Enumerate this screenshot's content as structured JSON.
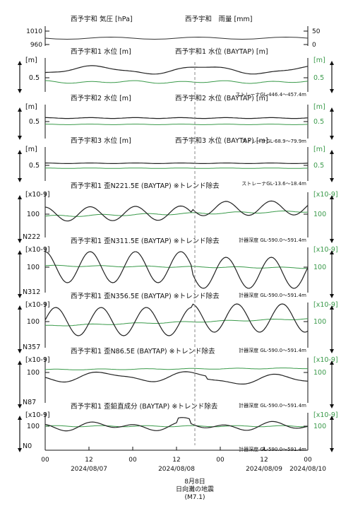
{
  "colors": {
    "black_series": "#222222",
    "green_series": "#3a9a4a",
    "axis": "#111111",
    "event_line": "#888888"
  },
  "chart_data": {
    "type": "line",
    "x_ticks": [
      "00",
      "12",
      "00",
      "12",
      "00",
      "12",
      "00"
    ],
    "date_labels": [
      "2024/08/07",
      "2024/08/08",
      "2024/08/09",
      "2024/08/10"
    ],
    "event": {
      "line1": "8月8日",
      "line2": "日向灘の地震",
      "line3": "(M7.1)",
      "x_hours": 40
    },
    "top": {
      "title_left": "西予宇和 気圧 [hPa]",
      "title_right": "西予宇和　雨量 [mm]",
      "left_ticks": [
        "1010",
        "960"
      ],
      "right_ticks": [
        "50",
        "0"
      ]
    },
    "panels": [
      {
        "title_left": "西予宇和1 水位 [m]",
        "title_right": "西予宇和1 水位 (BAYTAP) [m]",
        "unit_left": "[m]",
        "unit_right": "[m]",
        "tick": "0.5",
        "tick_right": "0.5",
        "note": "ストレーナGL-446.4〜457.4m",
        "code": ""
      },
      {
        "title_left": "西予宇和2 水位 [m]",
        "title_right": "西予宇和2 水位 (BAYTAP) [m]",
        "unit_left": "[m]",
        "unit_right": "[m]",
        "tick": "0.5",
        "tick_right": "0.5",
        "note": "ストレーナGL-68.9〜79.9m",
        "code": ""
      },
      {
        "title_left": "西予宇和3 水位 [m]",
        "title_right": "西予宇和3 水位 (BAYTAP) [m]",
        "unit_left": "[m]",
        "unit_right": "[m]",
        "tick": "0.5",
        "tick_right": "0.5",
        "note": "ストレーナGL-13.6〜18.4m",
        "code": ""
      },
      {
        "title_left": "西予宇和1 歪N221.5E (BAYTAP) ※トレンド除去",
        "title_right": "",
        "unit_left": "[x10-9]",
        "unit_right": "[x10-9]",
        "tick": "100",
        "tick_right": "100",
        "note": "計器深度 GL-590.0〜591.4m",
        "code": "N222"
      },
      {
        "title_left": "西予宇和1 歪N311.5E (BAYTAP) ※トレンド除去",
        "title_right": "",
        "unit_left": "[x10-9]",
        "unit_right": "[x10-9]",
        "tick": "100",
        "tick_right": "100",
        "note": "計器深度 GL-590.0〜591.4m",
        "code": "N312"
      },
      {
        "title_left": "西予宇和1 歪N356.5E (BAYTAP) ※トレンド除去",
        "title_right": "",
        "unit_left": "[x10-9]",
        "unit_right": "[x10-9]",
        "tick": "100",
        "tick_right": "100",
        "note": "計器深度 GL-590.0〜591.4m",
        "code": "N357"
      },
      {
        "title_left": "西予宇和1 歪N86.5E (BAYTAP) ※トレンド除去",
        "title_right": "",
        "unit_left": "[x10-9]",
        "unit_right": "[x10-9]",
        "tick": "100",
        "tick_right": "100",
        "note": "計器深度 GL-590.0〜591.4m",
        "code": "N87"
      },
      {
        "title_left": "西予宇和1 歪鉛直成分 (BAYTAP) ※トレンド除去",
        "title_right": "",
        "unit_left": "[x10-9]",
        "unit_right": "[x10-9]",
        "tick": "100",
        "tick_right": "100",
        "note": "計器深度 GL-590.0〜591.4m",
        "code": "N0"
      }
    ]
  }
}
